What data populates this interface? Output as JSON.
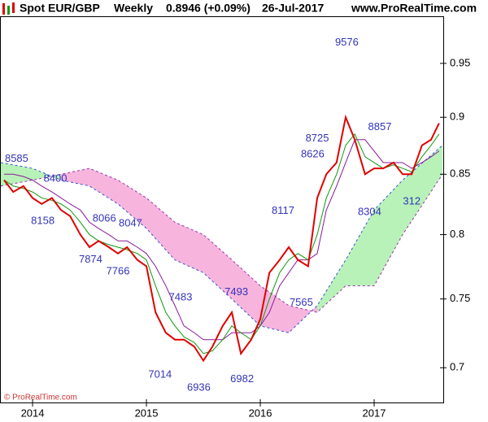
{
  "chart_data": {
    "type": "line",
    "title": "Spot EUR/GBP",
    "period": "Weekly",
    "last": "0.8946 (+0.09%)",
    "date": "26-Jul-2017",
    "source": "www.ProRealTime.com",
    "footer": "© ProRealTime.com",
    "log_scale": true,
    "xlim": [
      2013.714,
      2017.607
    ],
    "xticks": [
      2014,
      2015,
      2016,
      2017
    ],
    "ylim": [
      0.676,
      0.996
    ],
    "yticks": [
      0.7,
      0.75,
      0.8,
      0.85,
      0.9,
      0.95
    ],
    "x": [
      2013.75,
      2013.83,
      2013.92,
      2014.0,
      2014.08,
      2014.17,
      2014.25,
      2014.33,
      2014.42,
      2014.5,
      2014.58,
      2014.67,
      2014.75,
      2014.83,
      2014.92,
      2015.0,
      2015.08,
      2015.17,
      2015.25,
      2015.33,
      2015.42,
      2015.5,
      2015.58,
      2015.67,
      2015.75,
      2015.83,
      2015.92,
      2016.0,
      2016.08,
      2016.17,
      2016.25,
      2016.33,
      2016.42,
      2016.5,
      2016.58,
      2016.67,
      2016.75,
      2016.83,
      2016.92,
      2017.0,
      2017.08,
      2017.17,
      2017.25,
      2017.33,
      2017.42,
      2017.5,
      2017.57
    ],
    "series": [
      {
        "color": "#e00000",
        "values": [
          0.845,
          0.835,
          0.84,
          0.83,
          0.825,
          0.83,
          0.82,
          0.815,
          0.8,
          0.79,
          0.795,
          0.79,
          0.785,
          0.79,
          0.78,
          0.775,
          0.74,
          0.725,
          0.72,
          0.72,
          0.715,
          0.705,
          0.715,
          0.73,
          0.74,
          0.71,
          0.72,
          0.735,
          0.77,
          0.78,
          0.79,
          0.78,
          0.775,
          0.83,
          0.85,
          0.86,
          0.9,
          0.88,
          0.85,
          0.855,
          0.855,
          0.86,
          0.85,
          0.85,
          0.875,
          0.88,
          0.8946
        ]
      },
      {
        "color": "#119911",
        "values": [
          0.845,
          0.84,
          0.838,
          0.835,
          0.83,
          0.828,
          0.825,
          0.82,
          0.81,
          0.8,
          0.795,
          0.792,
          0.79,
          0.788,
          0.785,
          0.78,
          0.76,
          0.74,
          0.73,
          0.722,
          0.718,
          0.71,
          0.712,
          0.72,
          0.73,
          0.725,
          0.72,
          0.73,
          0.75,
          0.77,
          0.78,
          0.785,
          0.78,
          0.8,
          0.83,
          0.85,
          0.875,
          0.885,
          0.865,
          0.86,
          0.855,
          0.858,
          0.855,
          0.852,
          0.865,
          0.875,
          0.885
        ]
      },
      {
        "color": "#8a1a9a",
        "values": [
          0.85,
          0.85,
          0.848,
          0.845,
          0.84,
          0.835,
          0.83,
          0.825,
          0.82,
          0.81,
          0.805,
          0.8,
          0.795,
          0.795,
          0.79,
          0.785,
          0.775,
          0.76,
          0.745,
          0.73,
          0.725,
          0.72,
          0.72,
          0.72,
          0.725,
          0.725,
          0.725,
          0.73,
          0.74,
          0.76,
          0.77,
          0.78,
          0.78,
          0.785,
          0.82,
          0.84,
          0.86,
          0.88,
          0.88,
          0.87,
          0.86,
          0.86,
          0.86,
          0.855,
          0.86,
          0.865,
          0.87
        ]
      }
    ],
    "cloud": {
      "x": [
        2013.72,
        2014.0,
        2014.25,
        2014.5,
        2014.75,
        2015.0,
        2015.25,
        2015.5,
        2015.75,
        2016.0,
        2016.25,
        2016.5,
        2016.75,
        2017.0,
        2017.25,
        2017.6
      ],
      "span_a": [
        0.86,
        0.855,
        0.845,
        0.84,
        0.825,
        0.805,
        0.78,
        0.77,
        0.75,
        0.73,
        0.725,
        0.745,
        0.78,
        0.82,
        0.845,
        0.875
      ],
      "span_b": [
        0.84,
        0.845,
        0.85,
        0.855,
        0.845,
        0.83,
        0.81,
        0.8,
        0.78,
        0.76,
        0.745,
        0.74,
        0.76,
        0.76,
        0.8,
        0.85
      ],
      "up_color": "#b8f2b8",
      "down_color": "#f7b5de",
      "a_line_color": "#3355cc",
      "b_line_color": "#9933aa"
    },
    "annotations": [
      {
        "label": "8585",
        "x": 2013.86,
        "y": 0.863
      },
      {
        "label": "8400",
        "x": 2014.2,
        "y": 0.846
      },
      {
        "label": "8158",
        "x": 2014.09,
        "y": 0.811
      },
      {
        "label": "8066",
        "x": 2014.63,
        "y": 0.813
      },
      {
        "label": "8047",
        "x": 2014.86,
        "y": 0.809
      },
      {
        "label": "7874",
        "x": 2014.51,
        "y": 0.78
      },
      {
        "label": "7766",
        "x": 2014.75,
        "y": 0.771
      },
      {
        "label": "7483",
        "x": 2015.3,
        "y": 0.751
      },
      {
        "label": "7493",
        "x": 2015.79,
        "y": 0.755
      },
      {
        "label": "7565",
        "x": 2016.36,
        "y": 0.747
      },
      {
        "label": "8117",
        "x": 2016.2,
        "y": 0.819
      },
      {
        "label": "8626",
        "x": 2016.46,
        "y": 0.867
      },
      {
        "label": "8725",
        "x": 2016.5,
        "y": 0.881
      },
      {
        "label": "9576",
        "x": 2016.76,
        "y": 0.97
      },
      {
        "label": "8857",
        "x": 2017.05,
        "y": 0.891
      },
      {
        "label": "8304",
        "x": 2016.96,
        "y": 0.818
      },
      {
        "label": "312",
        "x": 2017.33,
        "y": 0.827
      },
      {
        "label": "7014",
        "x": 2015.12,
        "y": 0.695
      },
      {
        "label": "6936",
        "x": 2015.46,
        "y": 0.686
      },
      {
        "label": "6982",
        "x": 2015.84,
        "y": 0.692
      }
    ]
  }
}
